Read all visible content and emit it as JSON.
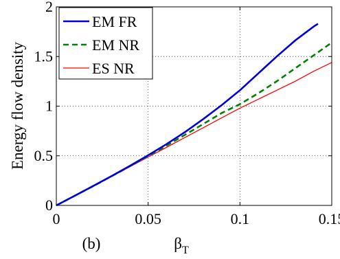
{
  "panel_label": "(b)",
  "chart_data": {
    "type": "line",
    "title": "",
    "xlabel": "β",
    "xlabel_subscript": "T",
    "ylabel": "Energy flow density",
    "xlim": [
      0,
      0.15
    ],
    "ylim": [
      0,
      2
    ],
    "xticks": [
      0,
      0.05,
      0.1,
      0.15
    ],
    "xtick_labels": [
      "0",
      "0.05",
      "0.1",
      "0.15"
    ],
    "yticks": [
      0,
      0.5,
      1,
      1.5,
      2
    ],
    "ytick_labels": [
      "0",
      "0.5",
      "1",
      "1.5",
      "2"
    ],
    "grid": true,
    "legend_position": "top-left",
    "series": [
      {
        "name": "EM FR",
        "color": "#0000dd",
        "style": "solid",
        "x": [
          0,
          0.01,
          0.02,
          0.03,
          0.04,
          0.05,
          0.06,
          0.07,
          0.08,
          0.09,
          0.1,
          0.11,
          0.12,
          0.13,
          0.14,
          0.1425
        ],
        "y": [
          0,
          0.097,
          0.195,
          0.295,
          0.398,
          0.505,
          0.617,
          0.738,
          0.87,
          1.01,
          1.16,
          1.33,
          1.5,
          1.66,
          1.8,
          1.83
        ]
      },
      {
        "name": "EM NR",
        "color": "#008000",
        "style": "dashed",
        "x": [
          0,
          0.01,
          0.02,
          0.03,
          0.04,
          0.05,
          0.06,
          0.07,
          0.08,
          0.09,
          0.1,
          0.11,
          0.12,
          0.13,
          0.14,
          0.15
        ],
        "y": [
          0,
          0.097,
          0.194,
          0.293,
          0.394,
          0.497,
          0.602,
          0.71,
          0.82,
          0.93,
          1.02,
          1.13,
          1.25,
          1.38,
          1.51,
          1.64
        ]
      },
      {
        "name": "ES NR",
        "color": "#ff0000",
        "style": "solid",
        "x": [
          0,
          0.01,
          0.02,
          0.03,
          0.04,
          0.05,
          0.06,
          0.07,
          0.08,
          0.09,
          0.1,
          0.11,
          0.12,
          0.13,
          0.14,
          0.15
        ],
        "y": [
          0,
          0.097,
          0.194,
          0.291,
          0.389,
          0.487,
          0.585,
          0.684,
          0.783,
          0.882,
          0.98,
          1.07,
          1.16,
          1.25,
          1.35,
          1.44
        ]
      }
    ]
  }
}
